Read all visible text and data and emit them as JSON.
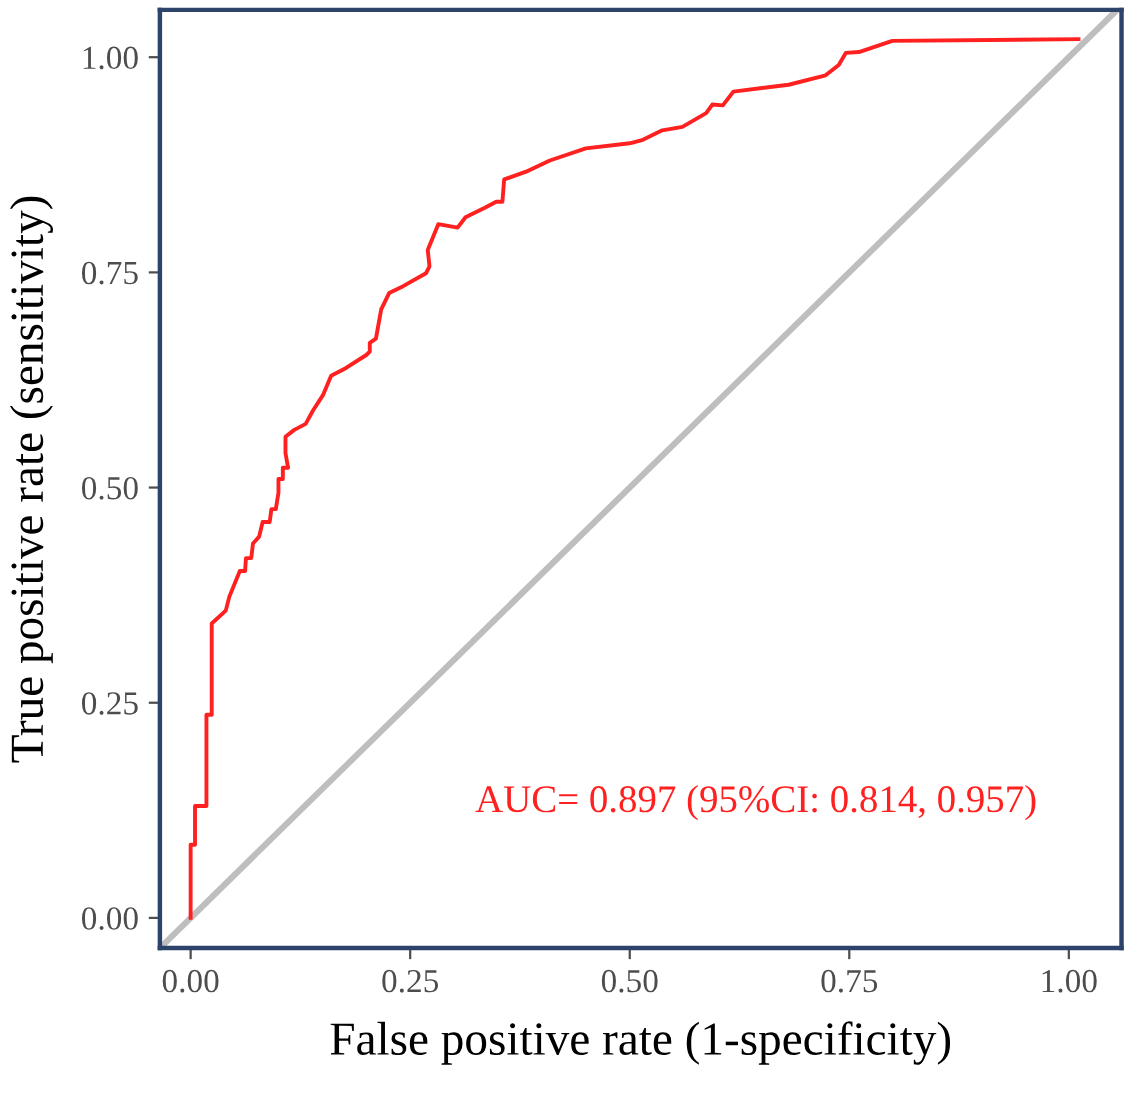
{
  "chart_data": {
    "type": "line",
    "xlabel": "False positive rate (1-specificity)",
    "ylabel": "True positive rate (sensitivity)",
    "xlim": [
      -0.035,
      1.06
    ],
    "ylim": [
      -0.035,
      1.055
    ],
    "xticks": [
      {
        "value": 0,
        "label": "0.00"
      },
      {
        "value": 0.25,
        "label": "0.25"
      },
      {
        "value": 0.5,
        "label": "0.50"
      },
      {
        "value": 0.75,
        "label": "0.75"
      },
      {
        "value": 1,
        "label": "1.00"
      }
    ],
    "yticks": [
      {
        "value": 0,
        "label": "0.00"
      },
      {
        "value": 0.25,
        "label": "0.25"
      },
      {
        "value": 0.5,
        "label": "0.50"
      },
      {
        "value": 0.75,
        "label": "0.75"
      },
      {
        "value": 1,
        "label": "1.00"
      }
    ],
    "grid": false,
    "annotations": [
      "AUC= 0.897 (95%CI: 0.814, 0.957)"
    ],
    "series": [
      {
        "color": "#bebebe",
        "x": [
          -0.035,
          1.055
        ],
        "values": [
          -0.035,
          1.055
        ]
      },
      {
        "color": "#ff2020",
        "x": [
          0,
          0,
          0.005,
          0.005,
          0.018,
          0.018,
          0.024,
          0.024,
          0.04,
          0.044,
          0.056,
          0.062,
          0.063,
          0.069,
          0.071,
          0.078,
          0.082,
          0.09,
          0.092,
          0.097,
          0.1,
          0.1,
          0.105,
          0.105,
          0.111,
          0.108,
          0.108,
          0.118,
          0.131,
          0.139,
          0.151,
          0.16,
          0.177,
          0.2,
          0.204,
          0.204,
          0.211,
          0.217,
          0.226,
          0.242,
          0.268,
          0.272,
          0.27,
          0.282,
          0.304,
          0.313,
          0.335,
          0.348,
          0.355,
          0.357,
          0.382,
          0.409,
          0.45,
          0.5,
          0.515,
          0.537,
          0.56,
          0.587,
          0.594,
          0.606,
          0.618,
          0.681,
          0.723,
          0.738,
          0.746,
          0.761,
          0.799,
          1.011
        ],
        "values": [
          0,
          0.085,
          0.085,
          0.13,
          0.13,
          0.236,
          0.236,
          0.342,
          0.357,
          0.373,
          0.403,
          0.403,
          0.418,
          0.418,
          0.435,
          0.443,
          0.46,
          0.46,
          0.475,
          0.475,
          0.494,
          0.51,
          0.51,
          0.523,
          0.523,
          0.54,
          0.559,
          0.567,
          0.574,
          0.589,
          0.608,
          0.63,
          0.639,
          0.654,
          0.658,
          0.668,
          0.673,
          0.707,
          0.726,
          0.734,
          0.749,
          0.757,
          0.776,
          0.806,
          0.802,
          0.814,
          0.825,
          0.832,
          0.832,
          0.858,
          0.867,
          0.88,
          0.894,
          0.9,
          0.904,
          0.915,
          0.919,
          0.935,
          0.945,
          0.944,
          0.96,
          0.968,
          0.979,
          0.991,
          1.005,
          1.006,
          1.019,
          1.021
        ]
      }
    ]
  }
}
